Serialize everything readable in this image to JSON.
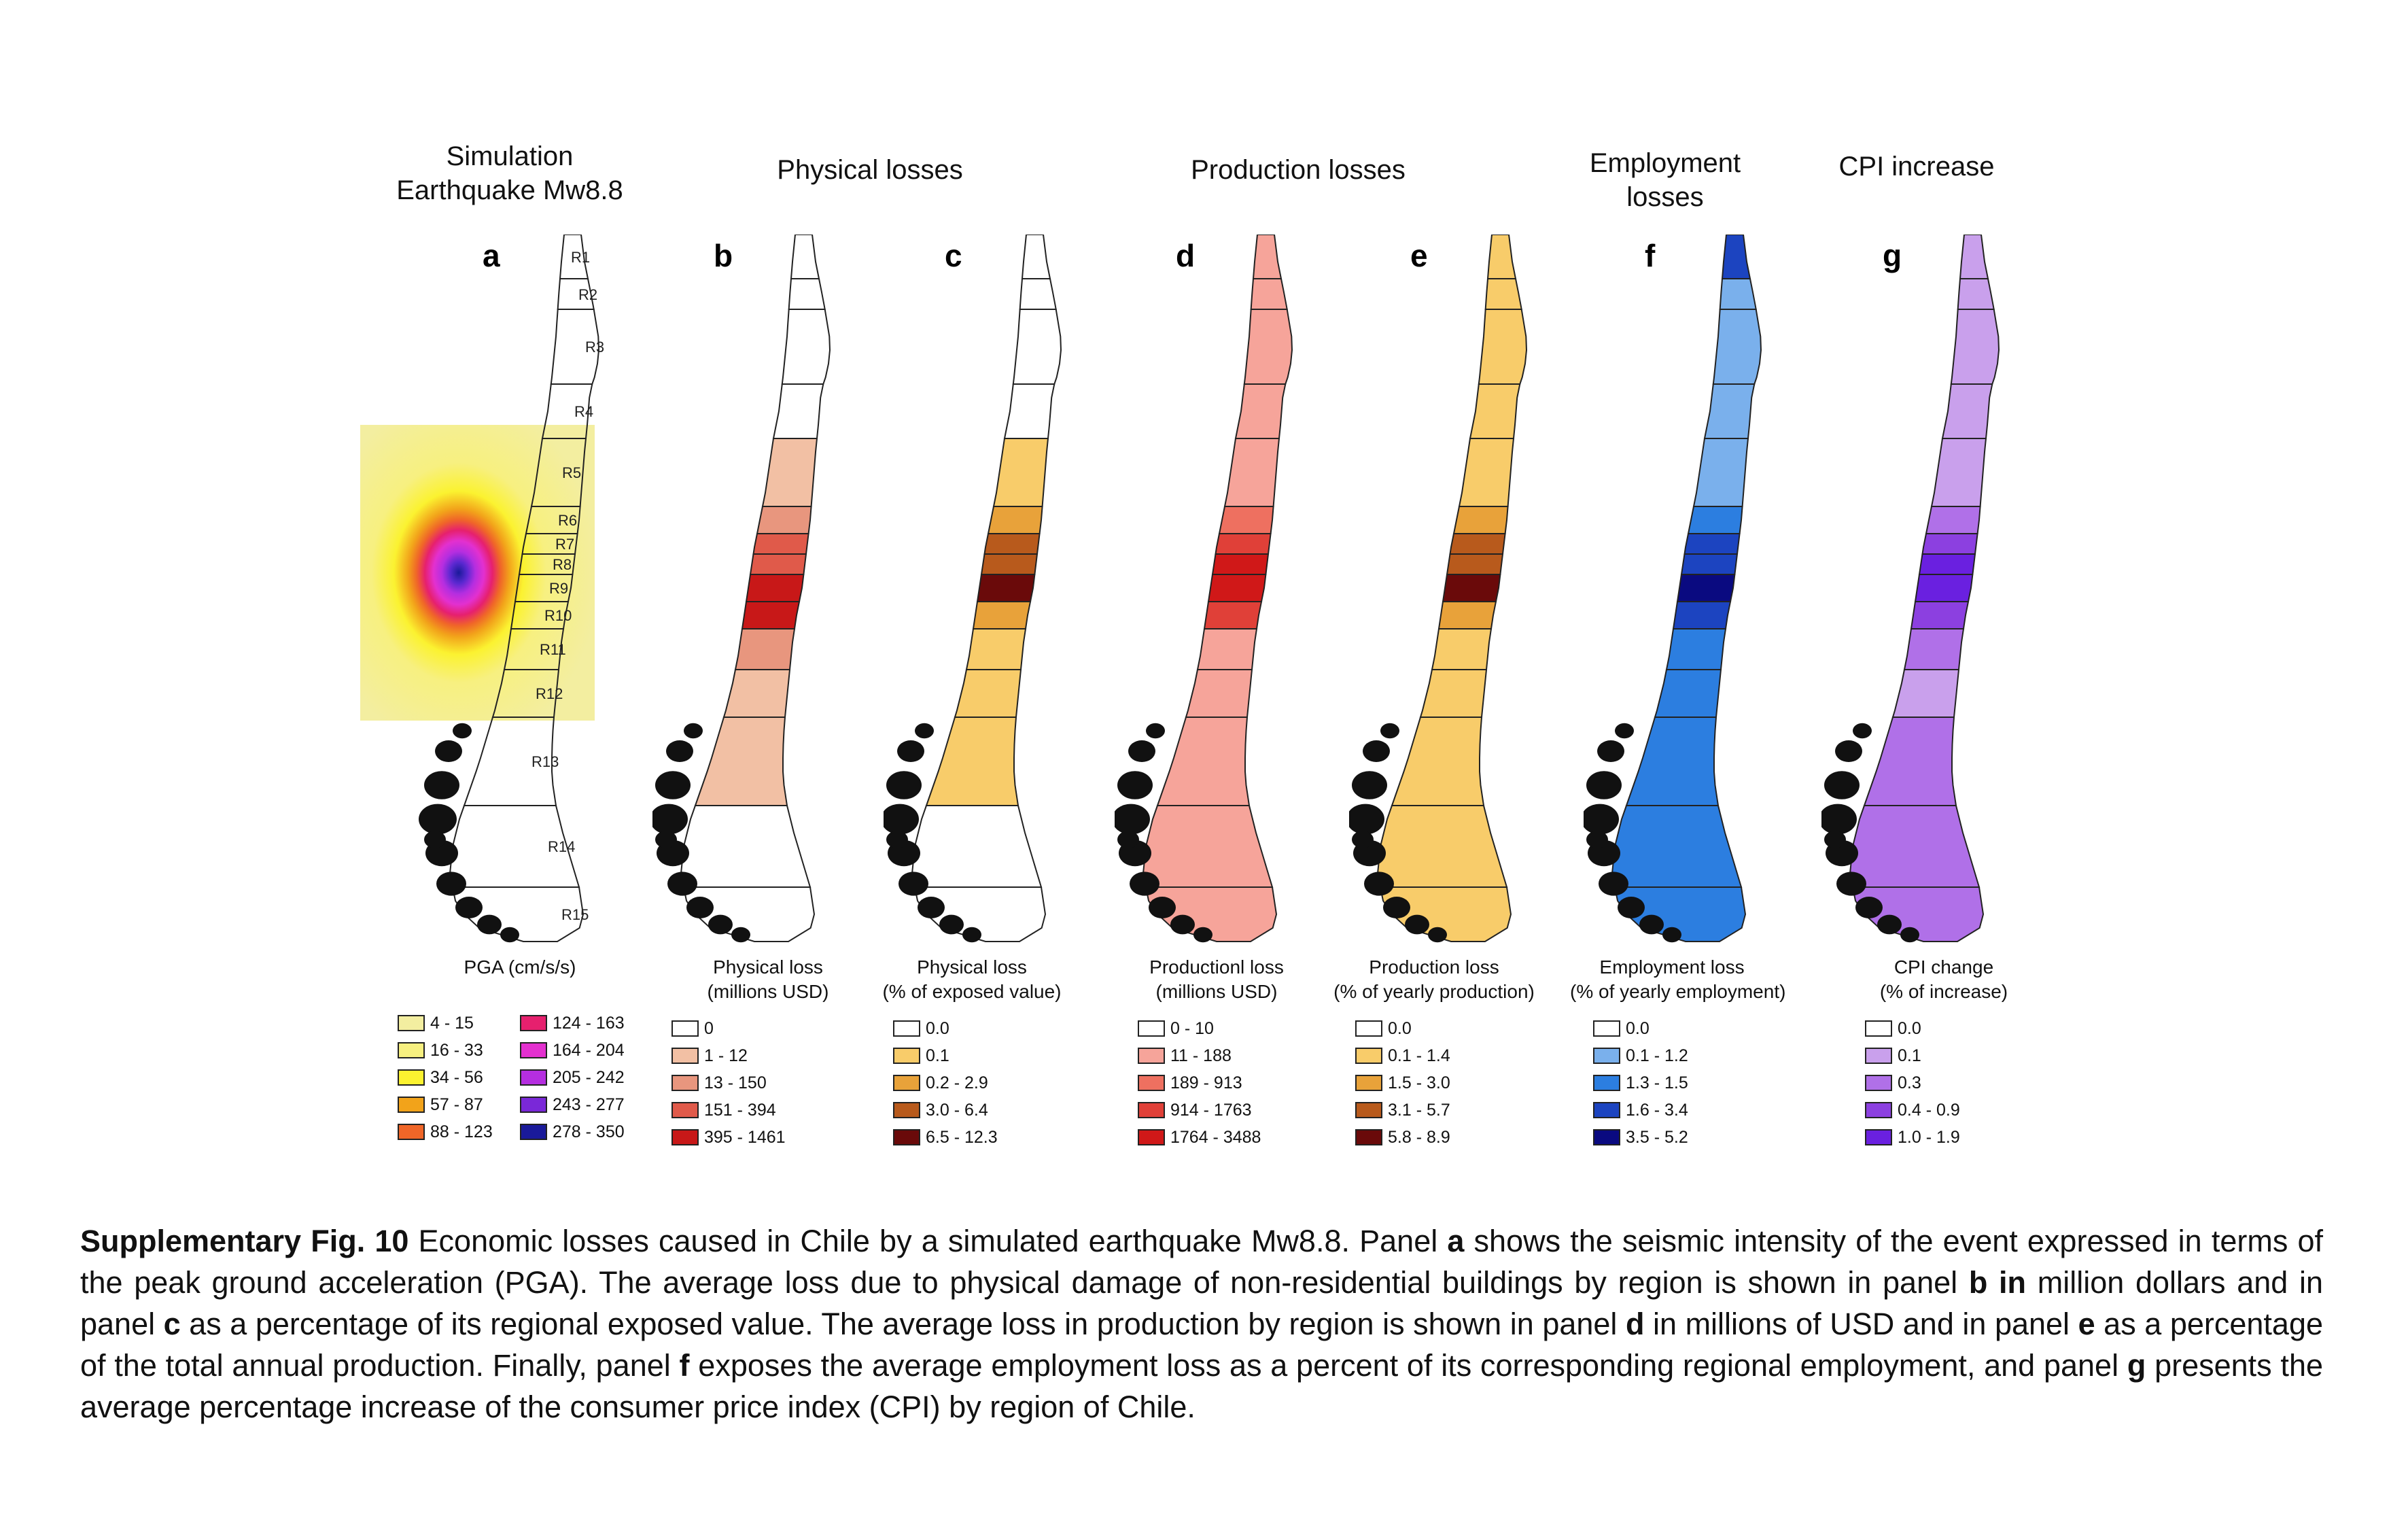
{
  "panels": [
    {
      "letter": "a",
      "header": [
        "Simulation",
        "Earthquake Mw8.8"
      ],
      "legend_title": [
        "PGA (cm/s/s)"
      ],
      "items": [
        {
          "label": "4 - 15",
          "color": "#f3eea0"
        },
        {
          "label": "16 - 33",
          "color": "#f7f080"
        },
        {
          "label": "34 - 56",
          "color": "#fbf230"
        },
        {
          "label": "57 - 87",
          "color": "#f2a31a"
        },
        {
          "label": "88 - 123",
          "color": "#f06628"
        },
        {
          "label": "124 - 163",
          "color": "#e6206e"
        },
        {
          "label": "164 - 204",
          "color": "#e330cf"
        },
        {
          "label": "205 - 242",
          "color": "#b52ee0"
        },
        {
          "label": "243 - 277",
          "color": "#7a28d8"
        },
        {
          "label": "278 - 350",
          "color": "#1a1a9a"
        }
      ]
    },
    {
      "letter": "b",
      "header": [
        "Physical losses"
      ],
      "legend_title": [
        "Physical loss",
        "(millions USD)"
      ],
      "items": [
        {
          "label": "0",
          "color": "#ffffff"
        },
        {
          "label": "1 - 12",
          "color": "#f2c0a4"
        },
        {
          "label": "13 - 150",
          "color": "#e8967e"
        },
        {
          "label": "151 - 394",
          "color": "#e05a4a"
        },
        {
          "label": "395 - 1461",
          "color": "#c81818"
        }
      ]
    },
    {
      "letter": "c",
      "header": [],
      "legend_title": [
        "Physical loss",
        "(% of exposed value)"
      ],
      "items": [
        {
          "label": "0.0",
          "color": "#ffffff"
        },
        {
          "label": "0.1",
          "color": "#f8cc6a"
        },
        {
          "label": "0.2 - 2.9",
          "color": "#e8a23a"
        },
        {
          "label": "3.0 - 6.4",
          "color": "#b85a1c"
        },
        {
          "label": "6.5 - 12.3",
          "color": "#6a0a0a"
        }
      ]
    },
    {
      "letter": "d",
      "header": [
        "Production losses"
      ],
      "legend_title": [
        "Productionl loss",
        "(millions USD)"
      ],
      "items": [
        {
          "label": "0 - 10",
          "color": "#ffffff"
        },
        {
          "label": "11 - 188",
          "color": "#f6a49a"
        },
        {
          "label": "189 - 913",
          "color": "#ee7060"
        },
        {
          "label": "914 - 1763",
          "color": "#e04038"
        },
        {
          "label": "1764 - 3488",
          "color": "#d01818"
        }
      ]
    },
    {
      "letter": "e",
      "header": [],
      "legend_title": [
        "Production loss",
        "(% of yearly production)"
      ],
      "items": [
        {
          "label": "0.0",
          "color": "#ffffff"
        },
        {
          "label": "0.1 - 1.4",
          "color": "#f8cc6a"
        },
        {
          "label": "1.5 - 3.0",
          "color": "#e8a23a"
        },
        {
          "label": "3.1 - 5.7",
          "color": "#b85a1c"
        },
        {
          "label": "5.8 - 8.9",
          "color": "#6a0a0a"
        }
      ]
    },
    {
      "letter": "f",
      "header": [
        "Employment",
        "losses"
      ],
      "legend_title": [
        "Employment loss",
        "(% of yearly employment)"
      ],
      "items": [
        {
          "label": "0.0",
          "color": "#ffffff"
        },
        {
          "label": "0.1 - 1.2",
          "color": "#7ab0ec"
        },
        {
          "label": "1.3 - 1.5",
          "color": "#2c7ee0"
        },
        {
          "label": "1.6 - 3.4",
          "color": "#1c44c0"
        },
        {
          "label": "3.5 - 5.2",
          "color": "#0a0a80"
        }
      ]
    },
    {
      "letter": "g",
      "header": [
        "CPI increase"
      ],
      "legend_title": [
        "CPI change",
        "(% of increase)"
      ],
      "items": [
        {
          "label": "0.0",
          "color": "#ffffff"
        },
        {
          "label": "0.1",
          "color": "#c9a0ec"
        },
        {
          "label": "0.3",
          "color": "#b070e8"
        },
        {
          "label": "0.4 - 0.9",
          "color": "#8c40e0"
        },
        {
          "label": "1.0 - 1.9",
          "color": "#6a20e0"
        }
      ]
    }
  ],
  "region_labels": [
    "R1",
    "R2",
    "R3",
    "R4",
    "R5",
    "R6",
    "R7",
    "R8",
    "R9",
    "R10",
    "R11",
    "R12",
    "R13",
    "R14",
    "R15"
  ],
  "map_fill_levels": {
    "b": [
      0,
      0,
      0,
      0,
      1,
      2,
      3,
      3,
      4,
      4,
      2,
      1,
      1,
      0,
      0
    ],
    "c": [
      0,
      0,
      0,
      0,
      1,
      2,
      3,
      3,
      4,
      2,
      1,
      1,
      1,
      0,
      0
    ],
    "d": [
      1,
      1,
      1,
      1,
      1,
      2,
      3,
      4,
      4,
      3,
      1,
      1,
      1,
      1,
      1
    ],
    "e": [
      1,
      1,
      1,
      1,
      1,
      2,
      3,
      3,
      4,
      2,
      1,
      1,
      1,
      1,
      1
    ],
    "f": [
      3,
      1,
      1,
      1,
      1,
      2,
      3,
      3,
      4,
      3,
      2,
      2,
      2,
      2,
      2
    ],
    "g": [
      1,
      1,
      1,
      1,
      1,
      2,
      3,
      4,
      4,
      3,
      2,
      1,
      2,
      2,
      2
    ]
  },
  "caption": {
    "fig_label": "Supplementary Fig. 10",
    "t1": " Economic losses caused in Chile by a simulated earthquake Mw8.8. Panel ",
    "b1": "a",
    "t2": " shows the seismic intensity of the event expressed in terms of the peak ground acceleration (PGA). The average loss due to physical damage of non-residential buildings by region is shown in panel ",
    "b2": "b in",
    "t3": " million dollars and in panel ",
    "b3": "c",
    "t4": " as a percentage of its regional exposed value. The average loss in production by region is shown in panel ",
    "b4": "d",
    "t5": " in millions of USD and in panel ",
    "b5": "e",
    "t6": " as a percentage of the total annual production. Finally, panel ",
    "b6": "f",
    "t7": " exposes the average employment loss as a percent of its corresponding regional employment, and panel ",
    "b7": "g",
    "t8": " presents the average percentage increase of the consumer price index (CPI) by region of Chile."
  }
}
